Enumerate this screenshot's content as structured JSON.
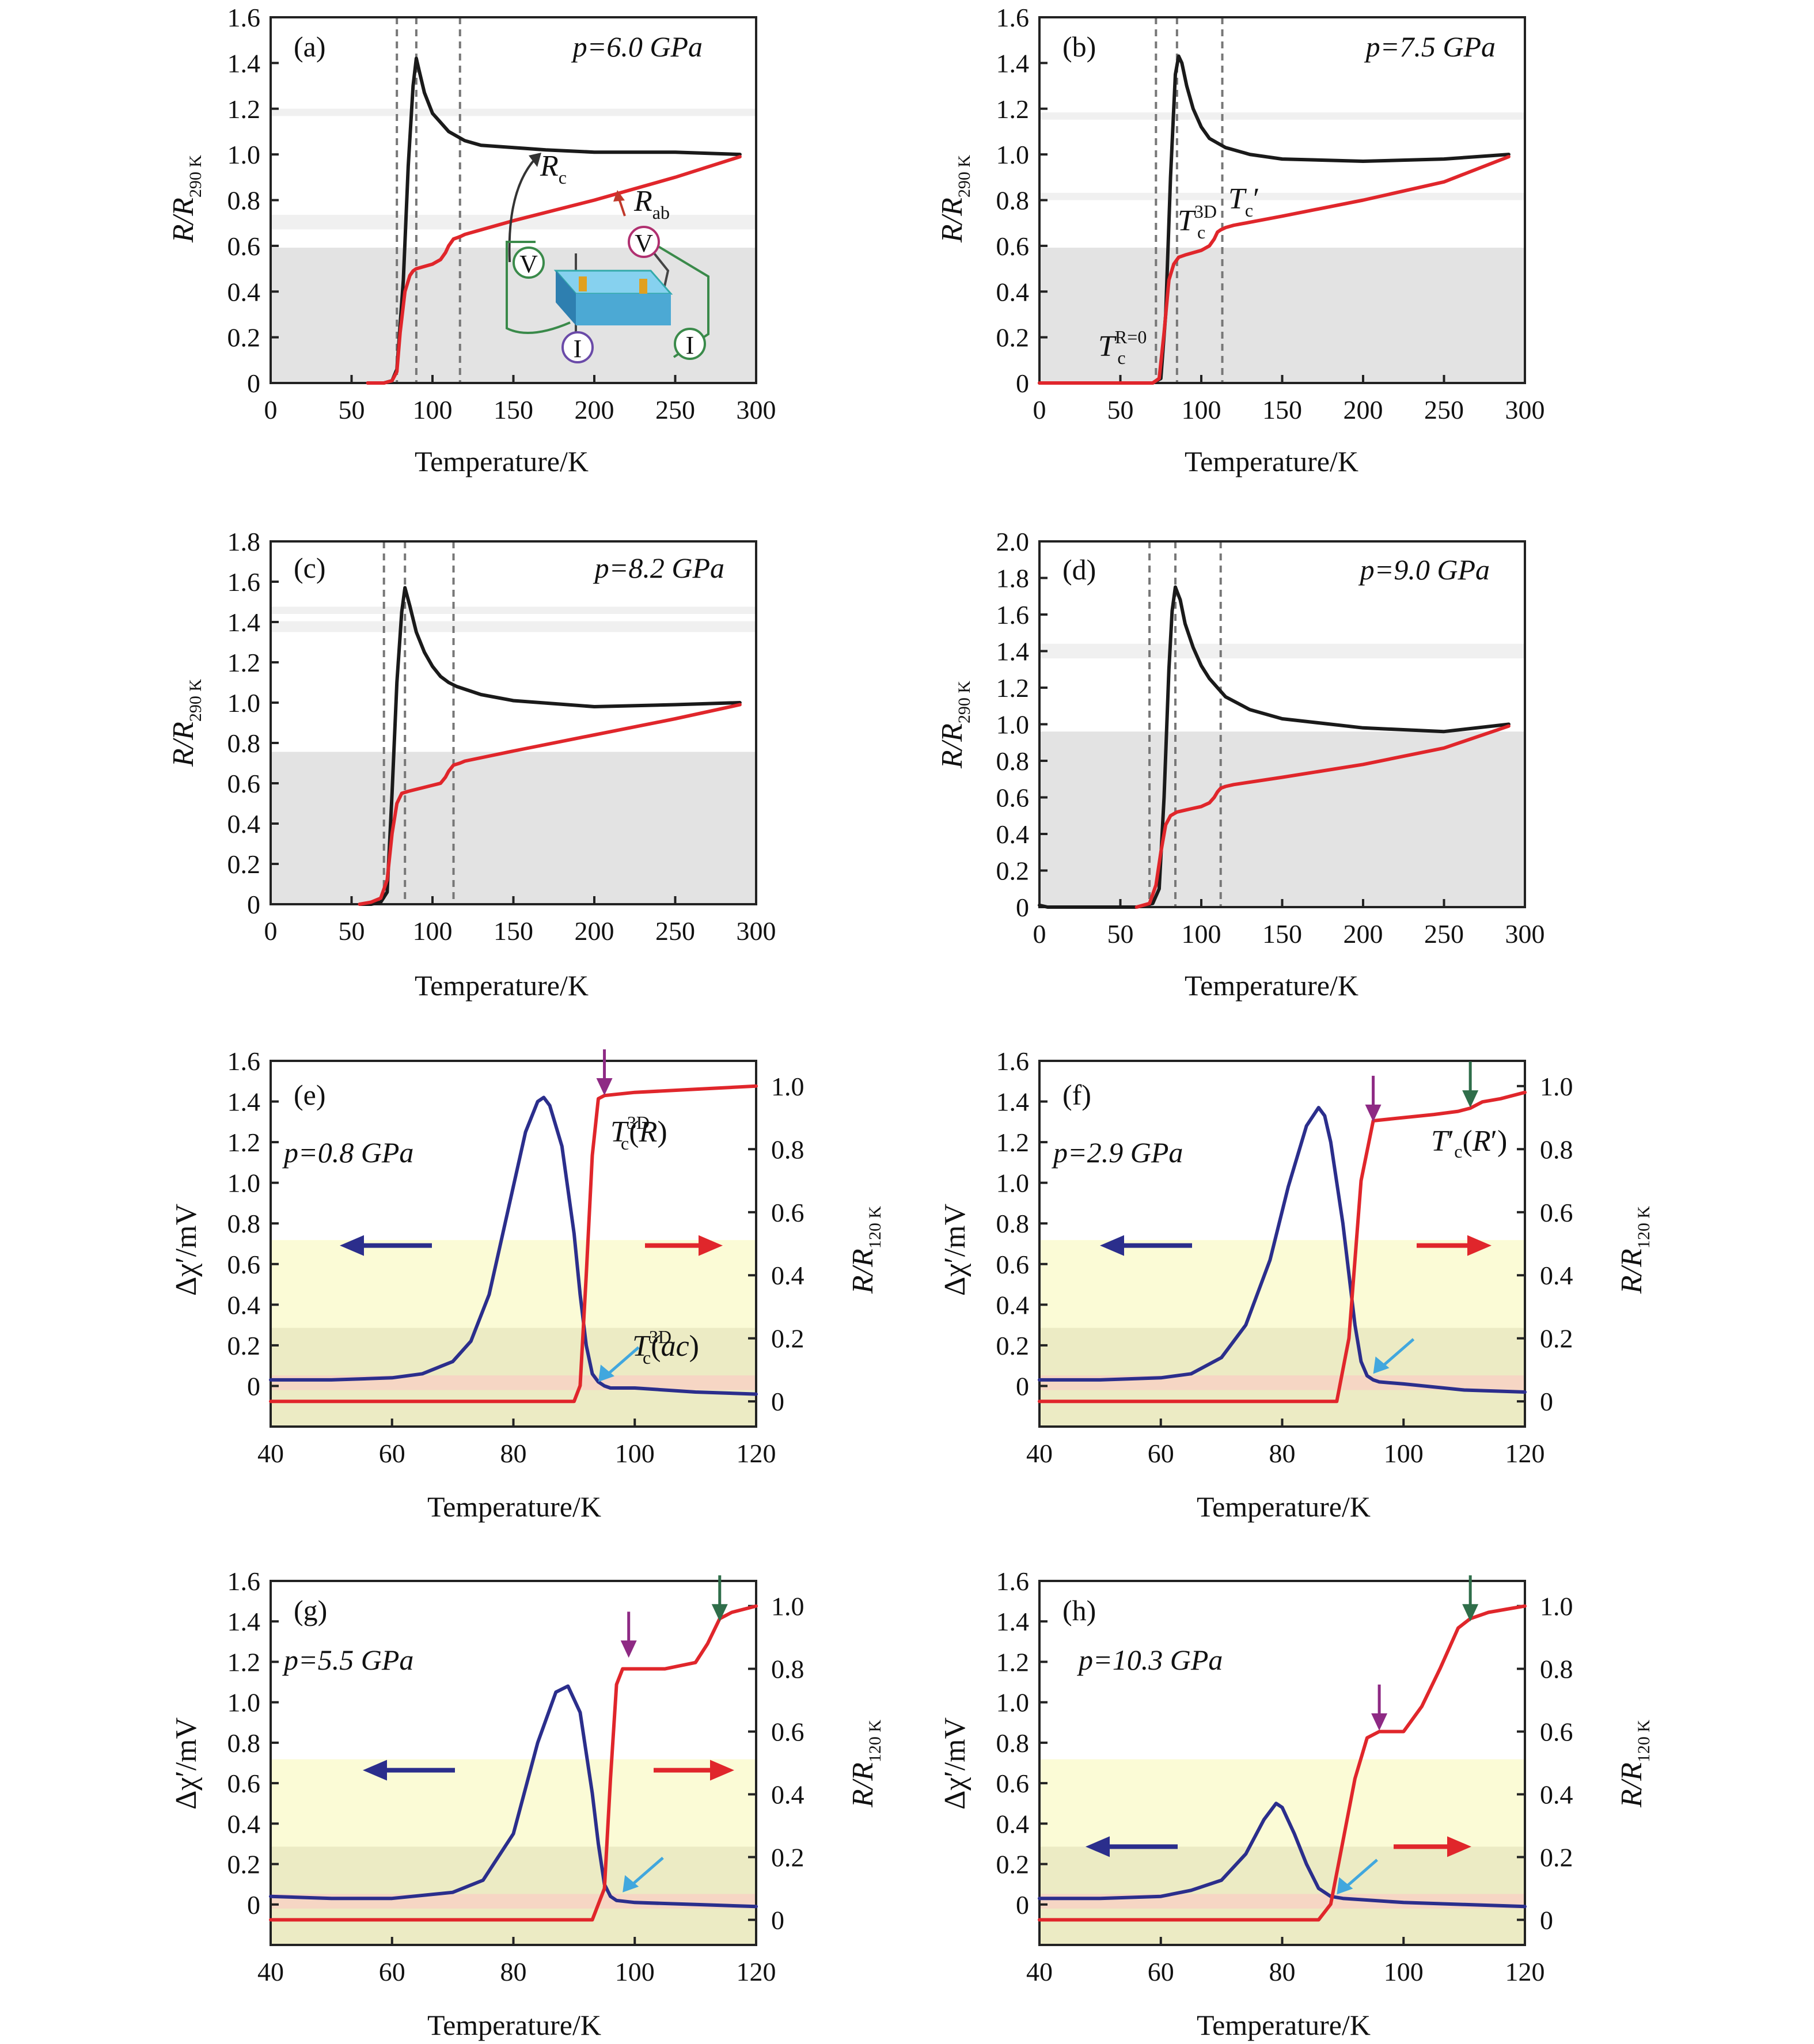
{
  "figure": {
    "xlabel": "Temperature/K",
    "ylabel_top": "R/R",
    "ylabel_top_sub": "290 K",
    "ylabel_left": "Δχ′/mV",
    "ylabel_right": "R/R",
    "ylabel_right_sub": "120 K",
    "series_colors": {
      "black": "#1a1a1a",
      "red": "#e0262b",
      "blue": "#2b2e8c"
    }
  },
  "chart_data": [
    {
      "id": "a",
      "type": "line",
      "panel_label": "(a)",
      "pressure": "p=6.0 GPa",
      "xlim": [
        0,
        300
      ],
      "ylim": [
        0,
        1.6
      ],
      "xticks": [
        "0",
        "50",
        "100",
        "150",
        "200",
        "250",
        "300"
      ],
      "yticks": [
        "0",
        "0.2",
        "0.4",
        "0.6",
        "0.8",
        "1.0",
        "1.2",
        "1.4",
        "1.6"
      ],
      "vlines": [
        78,
        90,
        117
      ],
      "annotations": [
        "R_c",
        "R_ab"
      ],
      "inset": "four-probe measurement schematic (V, V, I, I)",
      "series": [
        {
          "name": "R_c",
          "color": "black",
          "x": [
            60,
            70,
            75,
            78,
            82,
            85,
            88,
            90,
            92,
            95,
            100,
            110,
            120,
            130,
            150,
            170,
            200,
            250,
            290
          ],
          "y": [
            0,
            0,
            0.01,
            0.06,
            0.45,
            0.95,
            1.3,
            1.42,
            1.36,
            1.27,
            1.18,
            1.1,
            1.06,
            1.04,
            1.03,
            1.02,
            1.01,
            1.01,
            1.0
          ]
        },
        {
          "name": "R_ab",
          "color": "red",
          "x": [
            60,
            70,
            75,
            78,
            80,
            83,
            86,
            88,
            90,
            95,
            100,
            105,
            108,
            110,
            113,
            117,
            120,
            150,
            200,
            250,
            290
          ],
          "y": [
            0,
            0,
            0.01,
            0.05,
            0.22,
            0.4,
            0.47,
            0.49,
            0.5,
            0.51,
            0.52,
            0.54,
            0.57,
            0.6,
            0.63,
            0.64,
            0.65,
            0.71,
            0.8,
            0.9,
            0.99
          ]
        }
      ]
    },
    {
      "id": "b",
      "type": "line",
      "panel_label": "(b)",
      "pressure": "p=7.5 GPa",
      "xlim": [
        0,
        300
      ],
      "ylim": [
        0,
        1.6
      ],
      "xticks": [
        "0",
        "50",
        "100",
        "150",
        "200",
        "250",
        "300"
      ],
      "yticks": [
        "0",
        "0.2",
        "0.4",
        "0.6",
        "0.8",
        "1.0",
        "1.2",
        "1.4",
        "1.6"
      ],
      "vlines": [
        72,
        85,
        113
      ],
      "annotations": [
        "T_c^{R=0}",
        "T_c^{3D}",
        "T_c′"
      ],
      "series": [
        {
          "name": "R_c",
          "color": "black",
          "x": [
            0,
            60,
            70,
            75,
            78,
            81,
            84,
            86,
            88,
            91,
            95,
            100,
            105,
            110,
            115,
            130,
            150,
            200,
            250,
            290
          ],
          "y": [
            0,
            0,
            0,
            0.02,
            0.3,
            0.9,
            1.35,
            1.43,
            1.4,
            1.3,
            1.2,
            1.12,
            1.07,
            1.05,
            1.03,
            1.0,
            0.98,
            0.97,
            0.98,
            1.0
          ]
        },
        {
          "name": "R_ab",
          "color": "red",
          "x": [
            0,
            60,
            70,
            74,
            77,
            80,
            83,
            86,
            90,
            95,
            100,
            105,
            108,
            110,
            112,
            115,
            120,
            150,
            200,
            250,
            290
          ],
          "y": [
            0,
            0,
            0,
            0.02,
            0.22,
            0.45,
            0.52,
            0.55,
            0.56,
            0.57,
            0.58,
            0.6,
            0.63,
            0.66,
            0.67,
            0.68,
            0.69,
            0.73,
            0.8,
            0.88,
            0.99
          ]
        }
      ]
    },
    {
      "id": "c",
      "type": "line",
      "panel_label": "(c)",
      "pressure": "p=8.2 GPa",
      "xlim": [
        0,
        300
      ],
      "ylim": [
        0,
        1.8
      ],
      "xticks": [
        "0",
        "50",
        "100",
        "150",
        "200",
        "250",
        "300"
      ],
      "yticks": [
        "0",
        "0.2",
        "0.4",
        "0.6",
        "0.8",
        "1.0",
        "1.2",
        "1.4",
        "1.6",
        "1.8"
      ],
      "vlines": [
        70,
        83,
        113
      ],
      "series": [
        {
          "name": "R_c",
          "color": "black",
          "x": [
            55,
            62,
            68,
            72,
            75,
            78,
            81,
            83,
            86,
            90,
            95,
            100,
            105,
            110,
            115,
            130,
            150,
            200,
            250,
            290
          ],
          "y": [
            0,
            0,
            0.01,
            0.06,
            0.55,
            1.1,
            1.45,
            1.57,
            1.48,
            1.35,
            1.25,
            1.18,
            1.13,
            1.1,
            1.08,
            1.04,
            1.01,
            0.98,
            0.99,
            1.0
          ]
        },
        {
          "name": "R_ab",
          "color": "red",
          "x": [
            55,
            62,
            68,
            72,
            75,
            78,
            81,
            85,
            90,
            95,
            100,
            105,
            108,
            110,
            113,
            117,
            120,
            150,
            200,
            250,
            290
          ],
          "y": [
            0,
            0.01,
            0.03,
            0.12,
            0.35,
            0.5,
            0.55,
            0.56,
            0.57,
            0.58,
            0.59,
            0.6,
            0.63,
            0.66,
            0.69,
            0.7,
            0.71,
            0.76,
            0.84,
            0.92,
            0.99
          ]
        }
      ]
    },
    {
      "id": "d",
      "type": "line",
      "panel_label": "(d)",
      "pressure": "p=9.0 GPa",
      "xlim": [
        0,
        300
      ],
      "ylim": [
        0,
        2.0
      ],
      "xticks": [
        "0",
        "50",
        "100",
        "150",
        "200",
        "250",
        "300"
      ],
      "yticks": [
        "0",
        "0.2",
        "0.4",
        "0.6",
        "0.8",
        "1.0",
        "1.2",
        "1.4",
        "1.6",
        "1.8",
        "2.0"
      ],
      "vlines": [
        68,
        84,
        112
      ],
      "series": [
        {
          "name": "R_c",
          "color": "black",
          "x": [
            0,
            5,
            60,
            70,
            74,
            77,
            80,
            82,
            84,
            87,
            90,
            95,
            100,
            105,
            110,
            115,
            130,
            150,
            200,
            250,
            290
          ],
          "y": [
            0.01,
            0,
            0,
            0.02,
            0.1,
            0.6,
            1.3,
            1.62,
            1.75,
            1.68,
            1.55,
            1.42,
            1.32,
            1.25,
            1.2,
            1.15,
            1.08,
            1.03,
            0.98,
            0.96,
            1.0
          ]
        },
        {
          "name": "R_ab",
          "color": "red",
          "x": [
            60,
            68,
            72,
            75,
            78,
            81,
            85,
            90,
            95,
            100,
            105,
            108,
            110,
            112,
            115,
            120,
            150,
            200,
            250,
            290
          ],
          "y": [
            0,
            0.02,
            0.12,
            0.3,
            0.45,
            0.5,
            0.52,
            0.53,
            0.54,
            0.55,
            0.57,
            0.6,
            0.63,
            0.65,
            0.66,
            0.67,
            0.71,
            0.78,
            0.87,
            0.99
          ]
        }
      ]
    },
    {
      "id": "e",
      "type": "line",
      "panel_label": "(e)",
      "pressure": "p=0.8 GPa",
      "xlim": [
        40,
        120
      ],
      "ylim": [
        -0.2,
        1.6
      ],
      "ylim_right": [
        -0.08,
        1.08
      ],
      "xticks": [
        "40",
        "60",
        "80",
        "100",
        "120"
      ],
      "yticks": [
        "0",
        "0.2",
        "0.4",
        "0.6",
        "0.8",
        "1.0",
        "1.2",
        "1.4",
        "1.6"
      ],
      "yticks_right": [
        "0",
        "0.2",
        "0.4",
        "0.6",
        "0.8",
        "1.0"
      ],
      "annotations": [
        "T_c^{3D}(R)",
        "T_c^{3D}(ac)"
      ],
      "arrows": [
        {
          "color": "#8e2a84",
          "x": 95,
          "y": 1.43,
          "dir": "down"
        },
        {
          "color": "#41a7de",
          "x": 94,
          "y": 0.02,
          "dir": "down-left"
        }
      ],
      "series": [
        {
          "name": "Δχ′ (left axis)",
          "color": "blue",
          "x": [
            40,
            50,
            60,
            65,
            70,
            73,
            76,
            79,
            82,
            84,
            85,
            86,
            88,
            90,
            91,
            92,
            93,
            94,
            95,
            96,
            100,
            110,
            120
          ],
          "y": [
            0.03,
            0.03,
            0.04,
            0.06,
            0.12,
            0.22,
            0.45,
            0.85,
            1.25,
            1.4,
            1.42,
            1.38,
            1.18,
            0.75,
            0.45,
            0.2,
            0.06,
            0.02,
            0.0,
            -0.01,
            -0.01,
            -0.03,
            -0.04
          ]
        },
        {
          "name": "R/R_120K (right axis)",
          "color": "red",
          "x": [
            40,
            60,
            80,
            90,
            91,
            92,
            93,
            94,
            95,
            100,
            110,
            120
          ],
          "y": [
            0,
            0,
            0,
            0,
            0.05,
            0.4,
            0.78,
            0.96,
            0.97,
            0.98,
            0.99,
            1.0
          ]
        }
      ]
    },
    {
      "id": "f",
      "type": "line",
      "panel_label": "(f)",
      "pressure": "p=2.9 GPa",
      "xlim": [
        40,
        120
      ],
      "ylim": [
        -0.2,
        1.6
      ],
      "ylim_right": [
        -0.08,
        1.08
      ],
      "xticks": [
        "40",
        "60",
        "80",
        "100",
        "120"
      ],
      "yticks": [
        "0",
        "0.2",
        "0.4",
        "0.6",
        "0.8",
        "1.0",
        "1.2",
        "1.4",
        "1.6"
      ],
      "yticks_right": [
        "0",
        "0.2",
        "0.4",
        "0.6",
        "0.8",
        "1.0"
      ],
      "annotations": [
        "T′_c(R′)"
      ],
      "arrows": [
        {
          "color": "#8e2a84",
          "x": 95,
          "y": 1.3,
          "dir": "down"
        },
        {
          "color": "#2f6e4a",
          "x": 111,
          "y": 1.37,
          "dir": "down"
        },
        {
          "color": "#41a7de",
          "x": 95,
          "y": 0.06,
          "dir": "down-left"
        }
      ],
      "series": [
        {
          "name": "Δχ′ (left axis)",
          "color": "blue",
          "x": [
            40,
            50,
            60,
            65,
            70,
            74,
            78,
            81,
            84,
            86,
            87,
            88,
            90,
            91,
            92,
            93,
            94,
            95,
            96,
            100,
            110,
            120
          ],
          "y": [
            0.03,
            0.03,
            0.04,
            0.06,
            0.14,
            0.3,
            0.62,
            0.98,
            1.28,
            1.37,
            1.33,
            1.2,
            0.8,
            0.55,
            0.3,
            0.12,
            0.05,
            0.03,
            0.02,
            0.01,
            -0.02,
            -0.03
          ]
        },
        {
          "name": "R/R_120K (right axis)",
          "color": "red",
          "x": [
            40,
            60,
            80,
            89,
            91,
            93,
            95,
            100,
            105,
            109,
            111,
            113,
            116,
            120
          ],
          "y": [
            0,
            0,
            0,
            0,
            0.2,
            0.7,
            0.89,
            0.9,
            0.91,
            0.92,
            0.93,
            0.95,
            0.96,
            0.98
          ]
        }
      ]
    },
    {
      "id": "g",
      "type": "line",
      "panel_label": "(g)",
      "pressure": "p=5.5 GPa",
      "xlim": [
        40,
        120
      ],
      "ylim": [
        -0.2,
        1.6
      ],
      "ylim_right": [
        -0.08,
        1.08
      ],
      "xticks": [
        "40",
        "60",
        "80",
        "100",
        "120"
      ],
      "yticks": [
        "0",
        "0.2",
        "0.4",
        "0.6",
        "0.8",
        "1.0",
        "1.2",
        "1.4",
        "1.6"
      ],
      "yticks_right": [
        "0",
        "0.2",
        "0.4",
        "0.6",
        "0.8",
        "1.0"
      ],
      "arrows": [
        {
          "color": "#8e2a84",
          "x": 99,
          "y": 1.22,
          "dir": "down"
        },
        {
          "color": "#2f6e4a",
          "x": 114,
          "y": 1.4,
          "dir": "down"
        },
        {
          "color": "#41a7de",
          "x": 98,
          "y": 0.06,
          "dir": "down-left"
        }
      ],
      "series": [
        {
          "name": "Δχ′ (left axis)",
          "color": "blue",
          "x": [
            40,
            50,
            60,
            70,
            75,
            80,
            84,
            87,
            89,
            91,
            93,
            94,
            95,
            96,
            97,
            100,
            110,
            120
          ],
          "y": [
            0.04,
            0.03,
            0.03,
            0.06,
            0.12,
            0.35,
            0.8,
            1.05,
            1.08,
            0.95,
            0.55,
            0.3,
            0.1,
            0.04,
            0.02,
            0.01,
            0.0,
            -0.01
          ]
        },
        {
          "name": "R/R_120K (right axis)",
          "color": "red",
          "x": [
            40,
            60,
            80,
            93,
            95,
            96,
            97,
            98,
            100,
            105,
            110,
            112,
            114,
            116,
            120
          ],
          "y": [
            0,
            0,
            0,
            0,
            0.1,
            0.45,
            0.75,
            0.8,
            0.8,
            0.8,
            0.82,
            0.88,
            0.96,
            0.98,
            1.0
          ]
        }
      ]
    },
    {
      "id": "h",
      "type": "line",
      "panel_label": "(h)",
      "pressure": "p=10.3 GPa",
      "xlim": [
        40,
        120
      ],
      "ylim": [
        -0.2,
        1.6
      ],
      "ylim_right": [
        -0.08,
        1.08
      ],
      "xticks": [
        "40",
        "60",
        "80",
        "100",
        "120"
      ],
      "yticks": [
        "0",
        "0.2",
        "0.4",
        "0.6",
        "0.8",
        "1.0",
        "1.2",
        "1.4",
        "1.6"
      ],
      "yticks_right": [
        "0",
        "0.2",
        "0.4",
        "0.6",
        "0.8",
        "1.0"
      ],
      "arrows": [
        {
          "color": "#8e2a84",
          "x": 96,
          "y": 0.86,
          "dir": "down"
        },
        {
          "color": "#2f6e4a",
          "x": 111,
          "y": 1.4,
          "dir": "down"
        },
        {
          "color": "#41a7de",
          "x": 89,
          "y": 0.05,
          "dir": "down-left"
        }
      ],
      "series": [
        {
          "name": "Δχ′ (left axis)",
          "color": "blue",
          "x": [
            40,
            50,
            60,
            65,
            70,
            74,
            77,
            79,
            80,
            82,
            84,
            86,
            88,
            90,
            95,
            100,
            110,
            120
          ],
          "y": [
            0.03,
            0.03,
            0.04,
            0.07,
            0.12,
            0.25,
            0.42,
            0.5,
            0.48,
            0.35,
            0.2,
            0.08,
            0.04,
            0.03,
            0.02,
            0.01,
            0.0,
            -0.01
          ]
        },
        {
          "name": "R/R_120K (right axis)",
          "color": "red",
          "x": [
            40,
            60,
            80,
            86,
            88,
            90,
            92,
            94,
            96,
            100,
            103,
            106,
            109,
            111,
            114,
            117,
            120
          ],
          "y": [
            0,
            0,
            0,
            0,
            0.05,
            0.25,
            0.45,
            0.58,
            0.6,
            0.6,
            0.68,
            0.8,
            0.93,
            0.96,
            0.98,
            0.99,
            1.0
          ]
        }
      ]
    }
  ]
}
